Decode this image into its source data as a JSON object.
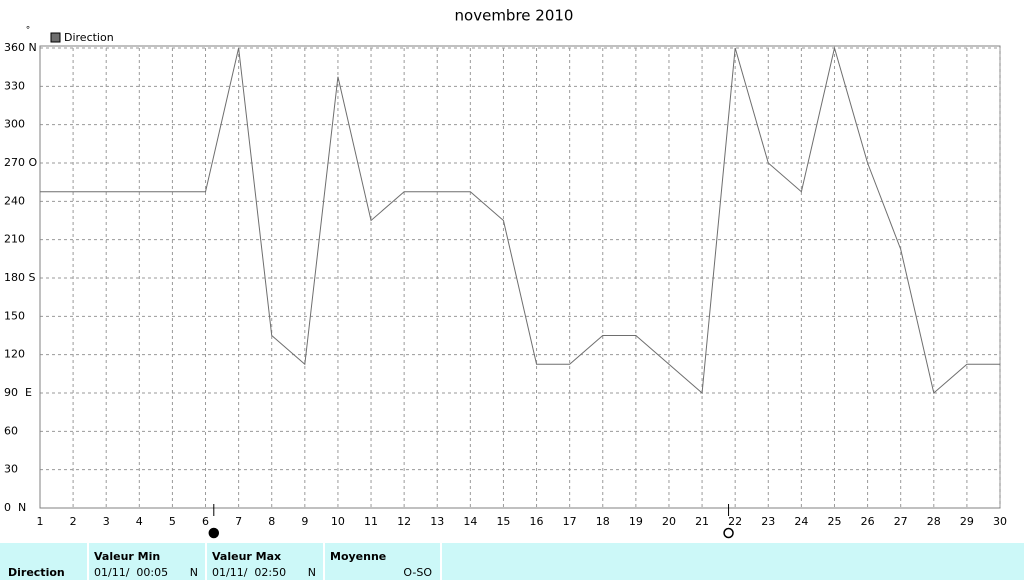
{
  "chart_data": {
    "type": "line",
    "title": "novembre 2010",
    "y_unit": "°",
    "x": [
      1,
      2,
      3,
      4,
      5,
      6,
      7,
      8,
      9,
      10,
      11,
      12,
      13,
      14,
      15,
      16,
      17,
      18,
      19,
      20,
      21,
      22,
      23,
      24,
      25,
      26,
      27,
      28,
      29,
      30
    ],
    "series": [
      {
        "name": "Direction",
        "color": "#6e6e6e",
        "values": [
          247.5,
          247.5,
          247.5,
          247.5,
          247.5,
          247.5,
          360,
          135,
          112.5,
          337.5,
          225,
          247.5,
          247.5,
          247.5,
          225,
          112.5,
          112.5,
          135,
          135,
          112.5,
          90,
          360,
          270,
          247.5,
          360,
          270,
          202.5,
          90,
          112.5,
          112.5
        ]
      }
    ],
    "xlim": [
      1,
      30
    ],
    "xticks": [
      1,
      2,
      3,
      4,
      5,
      6,
      7,
      8,
      9,
      10,
      11,
      12,
      13,
      14,
      15,
      16,
      17,
      18,
      19,
      20,
      21,
      22,
      23,
      24,
      25,
      26,
      27,
      28,
      29,
      30
    ],
    "ylim": [
      0,
      360
    ],
    "yticks": [
      {
        "value": 0,
        "label": "0  N"
      },
      30,
      60,
      {
        "value": 90,
        "label": "90  E"
      },
      120,
      150,
      {
        "value": 180,
        "label": "180 S"
      },
      210,
      240,
      {
        "value": 270,
        "label": "270 O"
      },
      300,
      330,
      {
        "value": 360,
        "label": "360 N"
      }
    ],
    "grid": true,
    "legend": "top-left",
    "markers": [
      {
        "x": 6.25,
        "style": "filled"
      },
      {
        "x": 21.8,
        "style": "open"
      }
    ]
  },
  "summary": {
    "label": "Direction",
    "columns": [
      {
        "header": "Valeur Min",
        "date": "01/11/  00:05",
        "value": "N"
      },
      {
        "header": "Valeur Max",
        "date": "01/11/  02:50",
        "value": "N"
      },
      {
        "header": "Moyenne",
        "value": "O-SO"
      }
    ]
  }
}
